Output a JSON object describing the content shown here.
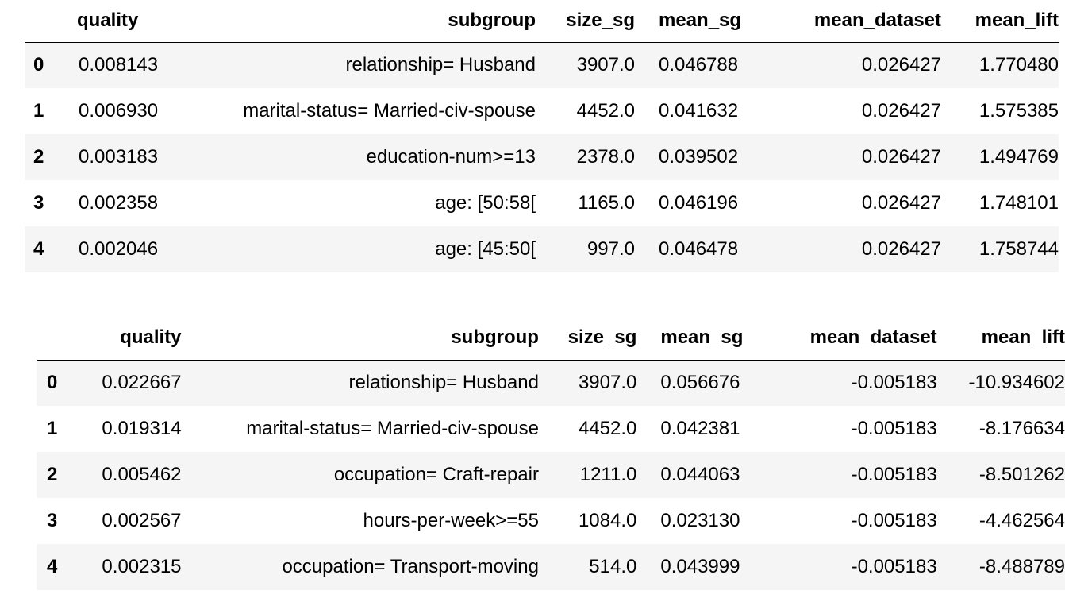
{
  "tables": [
    {
      "columns": [
        "",
        "quality",
        "subgroup",
        "size_sg",
        "mean_sg",
        "mean_dataset",
        "mean_lift"
      ],
      "rows": [
        {
          "index": "0",
          "quality": "0.008143",
          "subgroup": "relationship= Husband",
          "size_sg": "3907.0",
          "mean_sg": "0.046788",
          "mean_dataset": "0.026427",
          "mean_lift": "1.770480"
        },
        {
          "index": "1",
          "quality": "0.006930",
          "subgroup": "marital-status= Married-civ-spouse",
          "size_sg": "4452.0",
          "mean_sg": "0.041632",
          "mean_dataset": "0.026427",
          "mean_lift": "1.575385"
        },
        {
          "index": "2",
          "quality": "0.003183",
          "subgroup": "education-num>=13",
          "size_sg": "2378.0",
          "mean_sg": "0.039502",
          "mean_dataset": "0.026427",
          "mean_lift": "1.494769"
        },
        {
          "index": "3",
          "quality": "0.002358",
          "subgroup": "age: [50:58[",
          "size_sg": "1165.0",
          "mean_sg": "0.046196",
          "mean_dataset": "0.026427",
          "mean_lift": "1.748101"
        },
        {
          "index": "4",
          "quality": "0.002046",
          "subgroup": "age: [45:50[",
          "size_sg": "997.0",
          "mean_sg": "0.046478",
          "mean_dataset": "0.026427",
          "mean_lift": "1.758744"
        }
      ]
    },
    {
      "columns": [
        "",
        "quality",
        "subgroup",
        "size_sg",
        "mean_sg",
        "mean_dataset",
        "mean_lift"
      ],
      "rows": [
        {
          "index": "0",
          "quality": "0.022667",
          "subgroup": "relationship= Husband",
          "size_sg": "3907.0",
          "mean_sg": "0.056676",
          "mean_dataset": "-0.005183",
          "mean_lift": "-10.934602"
        },
        {
          "index": "1",
          "quality": "0.019314",
          "subgroup": "marital-status= Married-civ-spouse",
          "size_sg": "4452.0",
          "mean_sg": "0.042381",
          "mean_dataset": "-0.005183",
          "mean_lift": "-8.176634"
        },
        {
          "index": "2",
          "quality": "0.005462",
          "subgroup": "occupation= Craft-repair",
          "size_sg": "1211.0",
          "mean_sg": "0.044063",
          "mean_dataset": "-0.005183",
          "mean_lift": "-8.501262"
        },
        {
          "index": "3",
          "quality": "0.002567",
          "subgroup": "hours-per-week>=55",
          "size_sg": "1084.0",
          "mean_sg": "0.023130",
          "mean_dataset": "-0.005183",
          "mean_lift": "-4.462564"
        },
        {
          "index": "4",
          "quality": "0.002315",
          "subgroup": "occupation= Transport-moving",
          "size_sg": "514.0",
          "mean_sg": "0.043999",
          "mean_dataset": "-0.005183",
          "mean_lift": "-8.488789"
        }
      ]
    }
  ]
}
